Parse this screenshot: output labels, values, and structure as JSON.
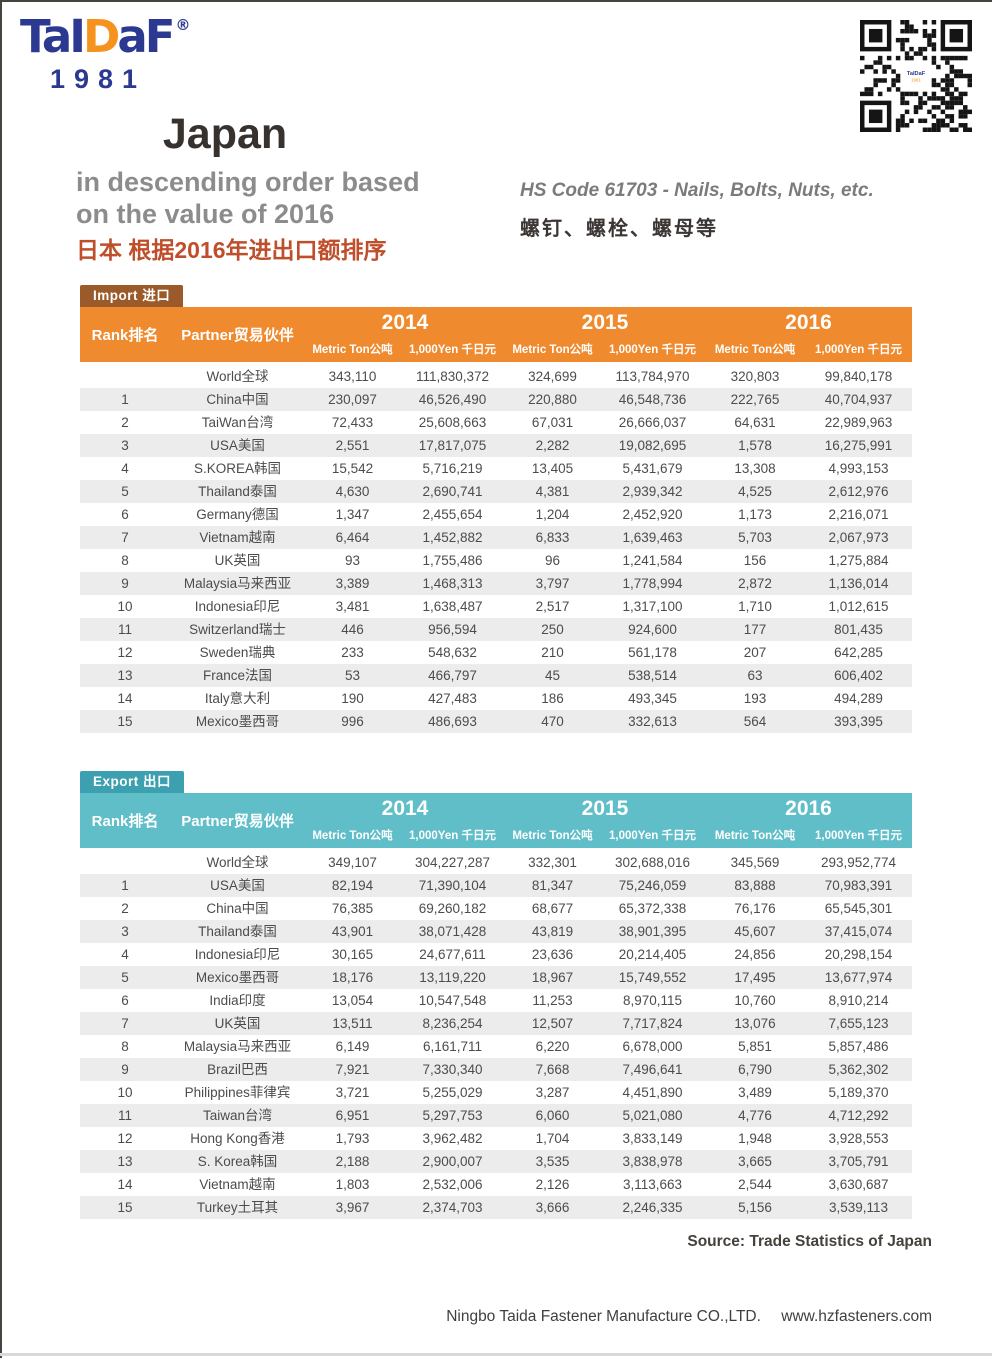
{
  "logo": {
    "part1": "TaI",
    "part2": "D",
    "part3": "aF",
    "registered": "®",
    "year": "1981"
  },
  "header": {
    "title": "Japan",
    "subtitle1": "in descending order based",
    "subtitle2": "on the value of 2016",
    "subtitle_cn": "日本 根据2016年进出口额排序",
    "hs_code": "HS Code 61703 - Nails, Bolts, Nuts, etc.",
    "hs_code_cn": "螺钉、螺栓、螺母等"
  },
  "table_labels": {
    "rank": "Rank排名",
    "partner": "Partner贸易伙伴",
    "years": [
      "2014",
      "2015",
      "2016"
    ],
    "metric_ton": "Metric Ton公吨",
    "yen": "1,000Yen 千日元"
  },
  "import_table": {
    "tab": "Import 进口",
    "rows": [
      [
        "",
        "World全球",
        "343,110",
        "111,830,372",
        "324,699",
        "113,784,970",
        "320,803",
        "99,840,178"
      ],
      [
        "1",
        "China中国",
        "230,097",
        "46,526,490",
        "220,880",
        "46,548,736",
        "222,765",
        "40,704,937"
      ],
      [
        "2",
        "TaiWan台湾",
        "72,433",
        "25,608,663",
        "67,031",
        "26,666,037",
        "64,631",
        "22,989,963"
      ],
      [
        "3",
        "USA美国",
        "2,551",
        "17,817,075",
        "2,282",
        "19,082,695",
        "1,578",
        "16,275,991"
      ],
      [
        "4",
        "S.KOREA韩国",
        "15,542",
        "5,716,219",
        "13,405",
        "5,431,679",
        "13,308",
        "4,993,153"
      ],
      [
        "5",
        "Thailand泰国",
        "4,630",
        "2,690,741",
        "4,381",
        "2,939,342",
        "4,525",
        "2,612,976"
      ],
      [
        "6",
        "Germany德国",
        "1,347",
        "2,455,654",
        "1,204",
        "2,452,920",
        "1,173",
        "2,216,071"
      ],
      [
        "7",
        "Vietnam越南",
        "6,464",
        "1,452,882",
        "6,833",
        "1,639,463",
        "5,703",
        "2,067,973"
      ],
      [
        "8",
        "UK英国",
        "93",
        "1,755,486",
        "96",
        "1,241,584",
        "156",
        "1,275,884"
      ],
      [
        "9",
        "Malaysia马来西亚",
        "3,389",
        "1,468,313",
        "3,797",
        "1,778,994",
        "2,872",
        "1,136,014"
      ],
      [
        "10",
        "Indonesia印尼",
        "3,481",
        "1,638,487",
        "2,517",
        "1,317,100",
        "1,710",
        "1,012,615"
      ],
      [
        "11",
        "Switzerland瑞士",
        "446",
        "956,594",
        "250",
        "924,600",
        "177",
        "801,435"
      ],
      [
        "12",
        "Sweden瑞典",
        "233",
        "548,632",
        "210",
        "561,178",
        "207",
        "642,285"
      ],
      [
        "13",
        "France法国",
        "53",
        "466,797",
        "45",
        "538,514",
        "63",
        "606,402"
      ],
      [
        "14",
        "Italy意大利",
        "190",
        "427,483",
        "186",
        "493,345",
        "193",
        "494,289"
      ],
      [
        "15",
        "Mexico墨西哥",
        "996",
        "486,693",
        "470",
        "332,613",
        "564",
        "393,395"
      ]
    ]
  },
  "export_table": {
    "tab": "Export 出口",
    "rows": [
      [
        "",
        "World全球",
        "349,107",
        "304,227,287",
        "332,301",
        "302,688,016",
        "345,569",
        "293,952,774"
      ],
      [
        "1",
        "USA美国",
        "82,194",
        "71,390,104",
        "81,347",
        "75,246,059",
        "83,888",
        "70,983,391"
      ],
      [
        "2",
        "China中国",
        "76,385",
        "69,260,182",
        "68,677",
        "65,372,338",
        "76,176",
        "65,545,301"
      ],
      [
        "3",
        "Thailand泰国",
        "43,901",
        "38,071,428",
        "43,819",
        "38,901,395",
        "45,607",
        "37,415,074"
      ],
      [
        "4",
        "Indonesia印尼",
        "30,165",
        "24,677,611",
        "23,636",
        "20,214,405",
        "24,856",
        "20,298,154"
      ],
      [
        "5",
        "Mexico墨西哥",
        "18,176",
        "13,119,220",
        "18,967",
        "15,749,552",
        "17,495",
        "13,677,974"
      ],
      [
        "6",
        "India印度",
        "13,054",
        "10,547,548",
        "11,253",
        "8,970,115",
        "10,760",
        "8,910,214"
      ],
      [
        "7",
        "UK英国",
        "13,511",
        "8,236,254",
        "12,507",
        "7,717,824",
        "13,076",
        "7,655,123"
      ],
      [
        "8",
        "Malaysia马来西亚",
        "6,149",
        "6,161,711",
        "6,220",
        "6,678,000",
        "5,851",
        "5,857,486"
      ],
      [
        "9",
        "Brazil巴西",
        "7,921",
        "7,330,340",
        "7,668",
        "7,496,641",
        "6,790",
        "5,362,302"
      ],
      [
        "10",
        "Philippines菲律宾",
        "3,721",
        "5,255,029",
        "3,287",
        "4,451,890",
        "3,489",
        "5,189,370"
      ],
      [
        "11",
        "Taiwan台湾",
        "6,951",
        "5,297,753",
        "6,060",
        "5,021,080",
        "4,776",
        "4,712,292"
      ],
      [
        "12",
        "Hong Kong香港",
        "1,793",
        "3,962,482",
        "1,704",
        "3,833,149",
        "1,948",
        "3,928,553"
      ],
      [
        "13",
        "S. Korea韩国",
        "2,188",
        "2,900,007",
        "3,535",
        "3,838,978",
        "3,665",
        "3,705,791"
      ],
      [
        "14",
        "Vietnam越南",
        "1,803",
        "2,532,006",
        "2,126",
        "3,113,663",
        "2,544",
        "3,630,687"
      ],
      [
        "15",
        "Turkey土耳其",
        "3,967",
        "2,374,703",
        "3,666",
        "2,246,335",
        "5,156",
        "3,539,113"
      ]
    ]
  },
  "footer": {
    "source": "Source: Trade Statistics of Japan",
    "company": "Ningbo Taida Fastener Manufacture CO.,LTD.",
    "website": "www.hzfasteners.com"
  },
  "colors": {
    "import_header": "#ef8a2e",
    "import_tab": "#9a5a2a",
    "export_header": "#60bec9",
    "export_tab": "#3da0b0",
    "row_alt": "#ececec",
    "logo_navy": "#2b3990",
    "logo_orange": "#f6921e",
    "title_cn": "#bf4e2a"
  }
}
